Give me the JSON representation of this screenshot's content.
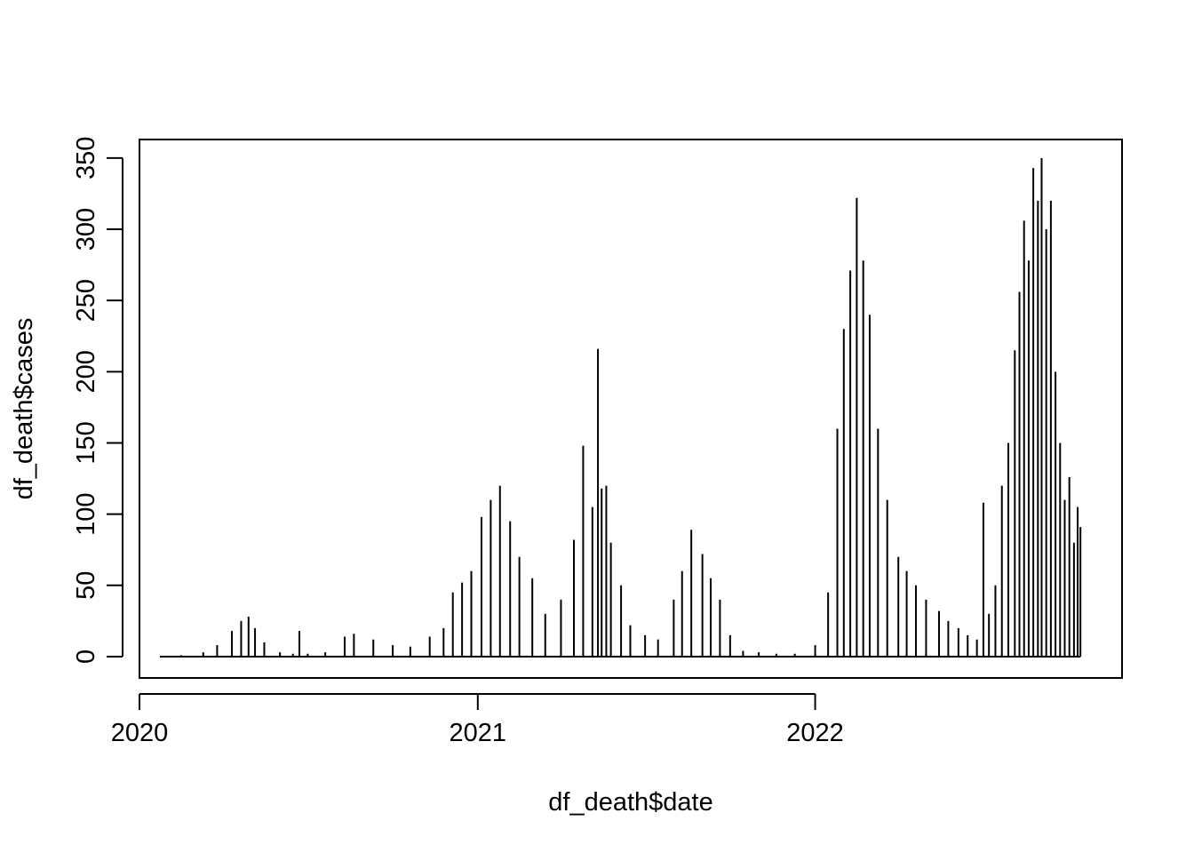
{
  "chart_data": {
    "type": "bar",
    "title": "",
    "xlabel": "df_death$date",
    "ylabel": "df_death$cases",
    "xlim": [
      "2020-01-01",
      "2022-11-29"
    ],
    "ylim": [
      -15,
      363
    ],
    "x_ticks": [
      "2020-01-01",
      "2021-01-01",
      "2022-01-01"
    ],
    "x_tick_labels": [
      "2020",
      "2021",
      "2022"
    ],
    "y_ticks": [
      0,
      50,
      100,
      150,
      200,
      250,
      300,
      350
    ],
    "y_tick_labels": [
      "0",
      "50",
      "100",
      "150",
      "200",
      "250",
      "300",
      "350"
    ],
    "grid": false,
    "bar_color": "#000000",
    "x": [
      "2020-01-23",
      "2020-02-15",
      "2020-03-10",
      "2020-03-25",
      "2020-04-10",
      "2020-04-20",
      "2020-04-28",
      "2020-05-05",
      "2020-05-15",
      "2020-06-01",
      "2020-06-15",
      "2020-06-22",
      "2020-07-01",
      "2020-07-20",
      "2020-08-10",
      "2020-08-20",
      "2020-09-10",
      "2020-10-01",
      "2020-10-20",
      "2020-11-10",
      "2020-11-25",
      "2020-12-05",
      "2020-12-15",
      "2020-12-25",
      "2021-01-05",
      "2021-01-15",
      "2021-01-25",
      "2021-02-05",
      "2021-02-15",
      "2021-03-01",
      "2021-03-15",
      "2021-04-01",
      "2021-04-15",
      "2021-04-25",
      "2021-05-05",
      "2021-05-11",
      "2021-05-15",
      "2021-05-20",
      "2021-05-25",
      "2021-06-05",
      "2021-06-15",
      "2021-07-01",
      "2021-07-15",
      "2021-08-01",
      "2021-08-10",
      "2021-08-20",
      "2021-09-01",
      "2021-09-10",
      "2021-09-20",
      "2021-10-01",
      "2021-10-15",
      "2021-11-01",
      "2021-11-20",
      "2021-12-10",
      "2022-01-01",
      "2022-01-15",
      "2022-01-25",
      "2022-02-01",
      "2022-02-08",
      "2022-02-15",
      "2022-02-22",
      "2022-03-01",
      "2022-03-10",
      "2022-03-20",
      "2022-04-01",
      "2022-04-10",
      "2022-04-20",
      "2022-05-01",
      "2022-05-15",
      "2022-05-25",
      "2022-06-05",
      "2022-06-15",
      "2022-06-25",
      "2022-07-02",
      "2022-07-08",
      "2022-07-15",
      "2022-07-22",
      "2022-07-29",
      "2022-08-05",
      "2022-08-10",
      "2022-08-15",
      "2022-08-20",
      "2022-08-25",
      "2022-08-30",
      "2022-09-03",
      "2022-09-08",
      "2022-09-13",
      "2022-09-18",
      "2022-09-23",
      "2022-09-28",
      "2022-10-03",
      "2022-10-08",
      "2022-10-12",
      "2022-10-15"
    ],
    "values": [
      0,
      1,
      3,
      8,
      18,
      25,
      28,
      20,
      10,
      3,
      2,
      18,
      2,
      3,
      14,
      16,
      12,
      8,
      7,
      14,
      20,
      45,
      52,
      60,
      98,
      110,
      120,
      95,
      70,
      55,
      30,
      40,
      82,
      148,
      105,
      216,
      118,
      120,
      80,
      50,
      22,
      15,
      12,
      40,
      60,
      89,
      72,
      55,
      40,
      15,
      4,
      3,
      2,
      2,
      8,
      45,
      160,
      230,
      271,
      322,
      278,
      240,
      160,
      110,
      70,
      60,
      50,
      40,
      32,
      25,
      20,
      15,
      12,
      108,
      30,
      50,
      120,
      150,
      215,
      256,
      306,
      278,
      343,
      320,
      350,
      300,
      320,
      200,
      150,
      110,
      126,
      80,
      105,
      91
    ]
  }
}
